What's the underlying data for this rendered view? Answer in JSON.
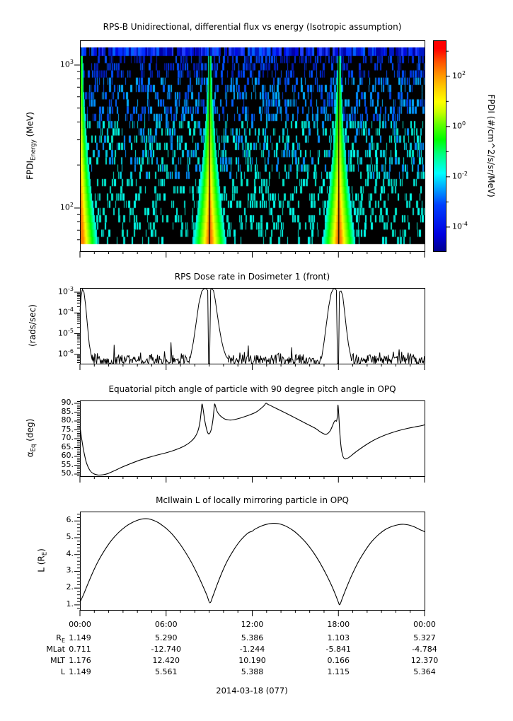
{
  "footer": {
    "date_label": "2014-03-18 (077)"
  },
  "xaxis": {
    "tick_labels": [
      "00:00",
      "06:00",
      "12:00",
      "18:00",
      "00:00"
    ],
    "tick_hours": [
      0,
      6,
      12,
      18,
      24
    ],
    "minor_interval_hours": 1,
    "range_hours": [
      0,
      24
    ]
  },
  "ephemeris": {
    "rows": [
      {
        "label_pre": "R",
        "label_sub": "E",
        "values": [
          "1.149",
          "5.290",
          "5.386",
          "1.103",
          "5.327"
        ]
      },
      {
        "label_pre": "MLat",
        "label_sub": "",
        "values": [
          "0.711",
          "-12.740",
          "-1.244",
          "-5.841",
          "-4.784"
        ]
      },
      {
        "label_pre": "MLT",
        "label_sub": "",
        "values": [
          "1.176",
          "12.420",
          "10.190",
          "0.166",
          "12.370"
        ]
      },
      {
        "label_pre": "L",
        "label_sub": "",
        "values": [
          "1.149",
          "5.561",
          "5.388",
          "1.115",
          "5.364"
        ]
      }
    ]
  },
  "chart_data": [
    {
      "type": "heatmap",
      "title": "RPS-B  Unidirectional, differential flux vs energy (Isotropic assumption)",
      "ylabel": {
        "pre": "FPDI",
        "sub": "Energy",
        "post": " (MeV)"
      },
      "yscale": "log",
      "ylim_mev": [
        50,
        1490
      ],
      "ytick_exponents": [
        3,
        2
      ],
      "data_energy_band_mev": [
        56,
        1320
      ],
      "perigee_pass_hours": [
        0.07,
        9.02,
        18.02
      ],
      "perigee_gap_halfwidth_hours": 0.035,
      "funnel_halfwidth_hours_top": 0.12,
      "funnel_halfwidth_hours_bottom": 1.17,
      "colorbar": {
        "label": "FPDI (#/cm^2/s/sr/MeV)",
        "tick_exponents": [
          2,
          0,
          -2,
          -4
        ],
        "minor_tick_exponents": [
          3,
          1,
          -1,
          -3
        ],
        "range_exponents": [
          -4.96,
          3.43
        ]
      }
    },
    {
      "type": "line",
      "title": "RPS  Dose rate in Dosimeter 1 (front)",
      "ylabel": {
        "pre": "(rads/sec)",
        "sub": "",
        "post": ""
      },
      "yscale": "log",
      "ylim_exponents": [
        -6.45,
        -2.795
      ],
      "ytick_exponents": [
        -3,
        -4,
        -5,
        -6
      ],
      "noise_floor_rads_per_sec": 5.5e-07,
      "noise_segments_hours": [
        [
          0.85,
          7.72
        ],
        [
          10.33,
          16.85
        ],
        [
          18.9,
          24
        ]
      ],
      "envelope_points": [
        [
          0,
          0.00012
        ],
        [
          0.08,
          0.0006
        ],
        [
          0.17,
          0.0014
        ],
        [
          0.28,
          0.001
        ],
        [
          0.4,
          0.00022
        ],
        [
          0.52,
          2.5e-05
        ],
        [
          0.65,
          3e-06
        ],
        [
          0.8,
          8e-07
        ],
        [
          0.85,
          5.5e-07
        ],
        [
          7.72,
          9e-07
        ],
        [
          7.9,
          4e-06
        ],
        [
          8.08,
          3e-05
        ],
        [
          8.28,
          0.00028
        ],
        [
          8.48,
          0.0011
        ],
        [
          8.62,
          0.00145
        ],
        [
          8.78,
          0.0015
        ],
        [
          8.9,
          0.0012
        ],
        [
          8.96,
          3.6e-07
        ],
        [
          9.03,
          3.6e-07
        ],
        [
          9.1,
          0.00135
        ],
        [
          9.2,
          0.00145
        ],
        [
          9.3,
          0.0012
        ],
        [
          9.42,
          0.00045
        ],
        [
          9.55,
          0.0001
        ],
        [
          9.7,
          2e-05
        ],
        [
          9.85,
          5e-06
        ],
        [
          10.0,
          1.8e-06
        ],
        [
          10.18,
          8e-07
        ],
        [
          10.33,
          6e-07
        ],
        [
          16.85,
          8e-07
        ],
        [
          17.0,
          4e-06
        ],
        [
          17.15,
          2.5e-05
        ],
        [
          17.32,
          0.0002
        ],
        [
          17.5,
          0.0009
        ],
        [
          17.65,
          0.00145
        ],
        [
          17.76,
          0.0015
        ],
        [
          17.86,
          0.00125
        ],
        [
          17.94,
          3.6e-07
        ],
        [
          18.01,
          3.6e-07
        ],
        [
          18.07,
          0.00105
        ],
        [
          18.18,
          0.00115
        ],
        [
          18.3,
          0.0007
        ],
        [
          18.42,
          0.00013
        ],
        [
          18.55,
          2e-05
        ],
        [
          18.7,
          3e-06
        ],
        [
          18.85,
          9e-07
        ],
        [
          18.9,
          5.8e-07
        ]
      ]
    },
    {
      "type": "line",
      "title": "Equatorial pitch angle of particle with 90 degree pitch angle in OPQ",
      "ylabel": {
        "pre": "α",
        "sub": "Eq",
        "post": " (deg)"
      },
      "yscale": "linear",
      "ylim": [
        48.8,
        91.6
      ],
      "ytick_values": [
        90,
        85,
        80,
        75,
        70,
        65,
        60,
        55,
        50
      ],
      "ytick_labels": [
        "90.",
        "85.",
        "80.",
        "75.",
        "70.",
        "65.",
        "60.",
        "55.",
        "50."
      ],
      "minor_tick_step": 1,
      "points": [
        [
          0,
          77
        ],
        [
          0.1,
          71
        ],
        [
          0.25,
          63.5
        ],
        [
          0.45,
          56.5
        ],
        [
          0.7,
          52
        ],
        [
          0.95,
          50.2
        ],
        [
          1.25,
          49.5
        ],
        [
          1.6,
          49.6
        ],
        [
          1.95,
          50.3
        ],
        [
          2.4,
          51.9
        ],
        [
          2.9,
          53.8
        ],
        [
          3.4,
          55.5
        ],
        [
          3.9,
          57.1
        ],
        [
          4.4,
          58.5
        ],
        [
          4.9,
          59.7
        ],
        [
          5.4,
          60.8
        ],
        [
          5.9,
          61.8
        ],
        [
          6.4,
          63
        ],
        [
          6.9,
          64.5
        ],
        [
          7.3,
          66
        ],
        [
          7.7,
          68.2
        ],
        [
          8.0,
          70.8
        ],
        [
          8.2,
          74
        ],
        [
          8.35,
          79
        ],
        [
          8.45,
          86
        ],
        [
          8.5,
          89.6
        ],
        [
          8.57,
          87
        ],
        [
          8.7,
          80
        ],
        [
          8.85,
          74.5
        ],
        [
          8.95,
          72.8
        ],
        [
          9.05,
          73.2
        ],
        [
          9.15,
          75.5
        ],
        [
          9.25,
          80
        ],
        [
          9.33,
          86
        ],
        [
          9.38,
          89.6
        ],
        [
          9.45,
          88
        ],
        [
          9.55,
          85.5
        ],
        [
          9.7,
          83.6
        ],
        [
          9.9,
          82.1
        ],
        [
          10.1,
          81.1
        ],
        [
          10.35,
          80.6
        ],
        [
          10.6,
          80.6
        ],
        [
          10.9,
          81.1
        ],
        [
          11.3,
          82
        ],
        [
          11.8,
          83.4
        ],
        [
          12.3,
          85.2
        ],
        [
          12.8,
          88.5
        ],
        [
          12.95,
          90
        ],
        [
          13.1,
          89.4
        ],
        [
          13.5,
          87.8
        ],
        [
          14,
          85.8
        ],
        [
          14.5,
          83.8
        ],
        [
          15,
          81.7
        ],
        [
          15.5,
          79.6
        ],
        [
          16,
          77.5
        ],
        [
          16.4,
          75.8
        ],
        [
          16.75,
          73.8
        ],
        [
          17,
          72.7
        ],
        [
          17.15,
          72.5
        ],
        [
          17.3,
          73.2
        ],
        [
          17.45,
          74.8
        ],
        [
          17.6,
          77.5
        ],
        [
          17.72,
          79.8
        ],
        [
          17.8,
          80.2
        ],
        [
          17.87,
          80
        ],
        [
          17.93,
          83
        ],
        [
          17.97,
          89
        ],
        [
          18.02,
          84
        ],
        [
          18.1,
          73
        ],
        [
          18.2,
          64.5
        ],
        [
          18.32,
          60
        ],
        [
          18.45,
          58.6
        ],
        [
          18.6,
          58.8
        ],
        [
          18.8,
          59.8
        ],
        [
          19.1,
          61.8
        ],
        [
          19.5,
          64.2
        ],
        [
          19.9,
          66.4
        ],
        [
          20.3,
          68.4
        ],
        [
          20.8,
          70.5
        ],
        [
          21.3,
          72.2
        ],
        [
          21.8,
          73.6
        ],
        [
          22.3,
          74.8
        ],
        [
          22.8,
          75.8
        ],
        [
          23.3,
          76.6
        ],
        [
          23.7,
          77.2
        ],
        [
          24,
          77.8
        ]
      ]
    },
    {
      "type": "line",
      "title": "McIlwain L of locally mirroring particle in OPQ",
      "ylabel": {
        "pre": "L (R",
        "sub": "E",
        "post": ")"
      },
      "yscale": "linear",
      "ylim": [
        0.7,
        6.56
      ],
      "ytick_values": [
        6,
        5,
        4,
        3,
        2,
        1
      ],
      "ytick_labels": [
        "6.",
        "5.",
        "4.",
        "3.",
        "2.",
        "1."
      ],
      "minor_tick_step": 0.2,
      "points": [
        [
          0,
          1.15
        ],
        [
          0.25,
          1.62
        ],
        [
          0.55,
          2.25
        ],
        [
          0.9,
          2.95
        ],
        [
          1.3,
          3.65
        ],
        [
          1.75,
          4.3
        ],
        [
          2.2,
          4.85
        ],
        [
          2.7,
          5.32
        ],
        [
          3.2,
          5.68
        ],
        [
          3.7,
          5.93
        ],
        [
          4.1,
          6.07
        ],
        [
          4.45,
          6.13
        ],
        [
          4.8,
          6.12
        ],
        [
          5.15,
          6.03
        ],
        [
          5.5,
          5.88
        ],
        [
          5.85,
          5.66
        ],
        [
          6.0,
          5.56
        ],
        [
          6.4,
          5.23
        ],
        [
          6.85,
          4.76
        ],
        [
          7.3,
          4.2
        ],
        [
          7.75,
          3.55
        ],
        [
          8.2,
          2.8
        ],
        [
          8.6,
          2.05
        ],
        [
          8.85,
          1.55
        ],
        [
          9.05,
          1.12
        ],
        [
          9.25,
          1.5
        ],
        [
          9.55,
          2.2
        ],
        [
          9.9,
          2.95
        ],
        [
          10.3,
          3.68
        ],
        [
          10.75,
          4.33
        ],
        [
          11.2,
          4.86
        ],
        [
          11.7,
          5.28
        ],
        [
          12.0,
          5.39
        ],
        [
          12.2,
          5.52
        ],
        [
          12.7,
          5.72
        ],
        [
          13.1,
          5.82
        ],
        [
          13.45,
          5.86
        ],
        [
          13.8,
          5.84
        ],
        [
          14.15,
          5.76
        ],
        [
          14.5,
          5.62
        ],
        [
          14.9,
          5.4
        ],
        [
          15.3,
          5.1
        ],
        [
          15.75,
          4.7
        ],
        [
          16.2,
          4.2
        ],
        [
          16.65,
          3.6
        ],
        [
          17.1,
          2.9
        ],
        [
          17.5,
          2.2
        ],
        [
          17.8,
          1.6
        ],
        [
          18.0,
          1.15
        ],
        [
          18.1,
          1.02
        ],
        [
          18.3,
          1.45
        ],
        [
          18.6,
          2.1
        ],
        [
          18.95,
          2.8
        ],
        [
          19.35,
          3.5
        ],
        [
          19.8,
          4.15
        ],
        [
          20.25,
          4.7
        ],
        [
          20.75,
          5.15
        ],
        [
          21.25,
          5.48
        ],
        [
          21.75,
          5.68
        ],
        [
          22.2,
          5.78
        ],
        [
          22.55,
          5.8
        ],
        [
          22.9,
          5.76
        ],
        [
          23.25,
          5.66
        ],
        [
          23.6,
          5.52
        ],
        [
          24,
          5.36
        ]
      ]
    }
  ]
}
